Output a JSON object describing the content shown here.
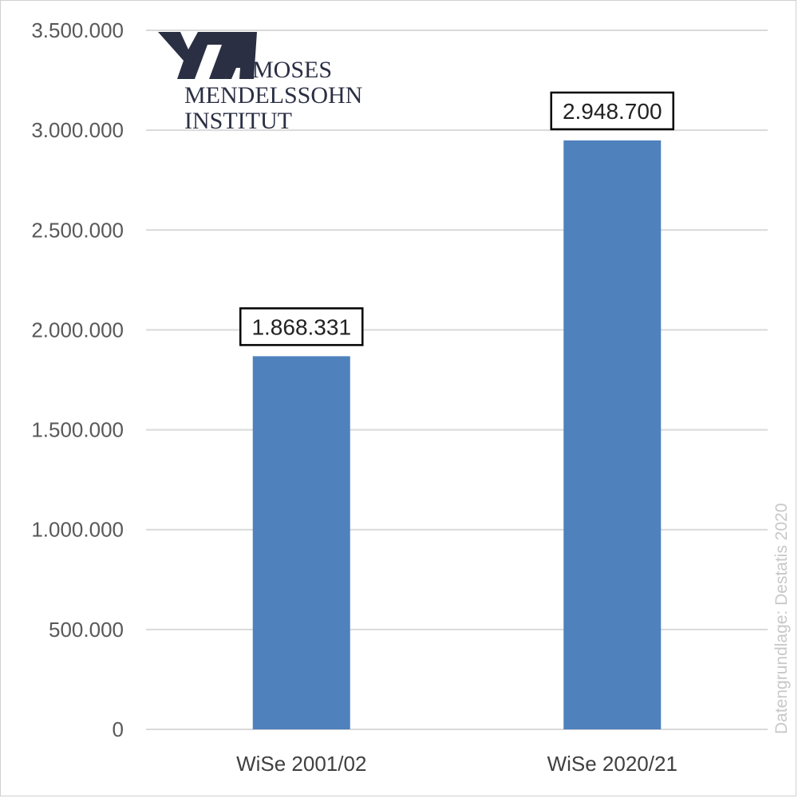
{
  "logo": {
    "line1": "MOSES",
    "line2": "MENDELSSOHN",
    "line3": "INSTITUT",
    "color": "#2b2f44"
  },
  "source": "Datengrundlage: Destatis 2020",
  "chart_data": {
    "type": "bar",
    "categories": [
      "WiSe 2001/02",
      "WiSe 2020/21"
    ],
    "values": [
      1868331,
      2948700
    ],
    "data_labels": [
      "1.868.331",
      "2.948.700"
    ],
    "ylim": [
      0,
      3500000
    ],
    "yticks": [
      0,
      500000,
      1000000,
      1500000,
      2000000,
      2500000,
      3000000,
      3500000
    ],
    "ytick_labels": [
      "0",
      "500.000",
      "1.000.000",
      "1.500.000",
      "2.000.000",
      "2.500.000",
      "3.000.000",
      "3.500.000"
    ],
    "grid": true,
    "bar_color": "#4f81bd",
    "title": "",
    "xlabel": "",
    "ylabel": ""
  }
}
